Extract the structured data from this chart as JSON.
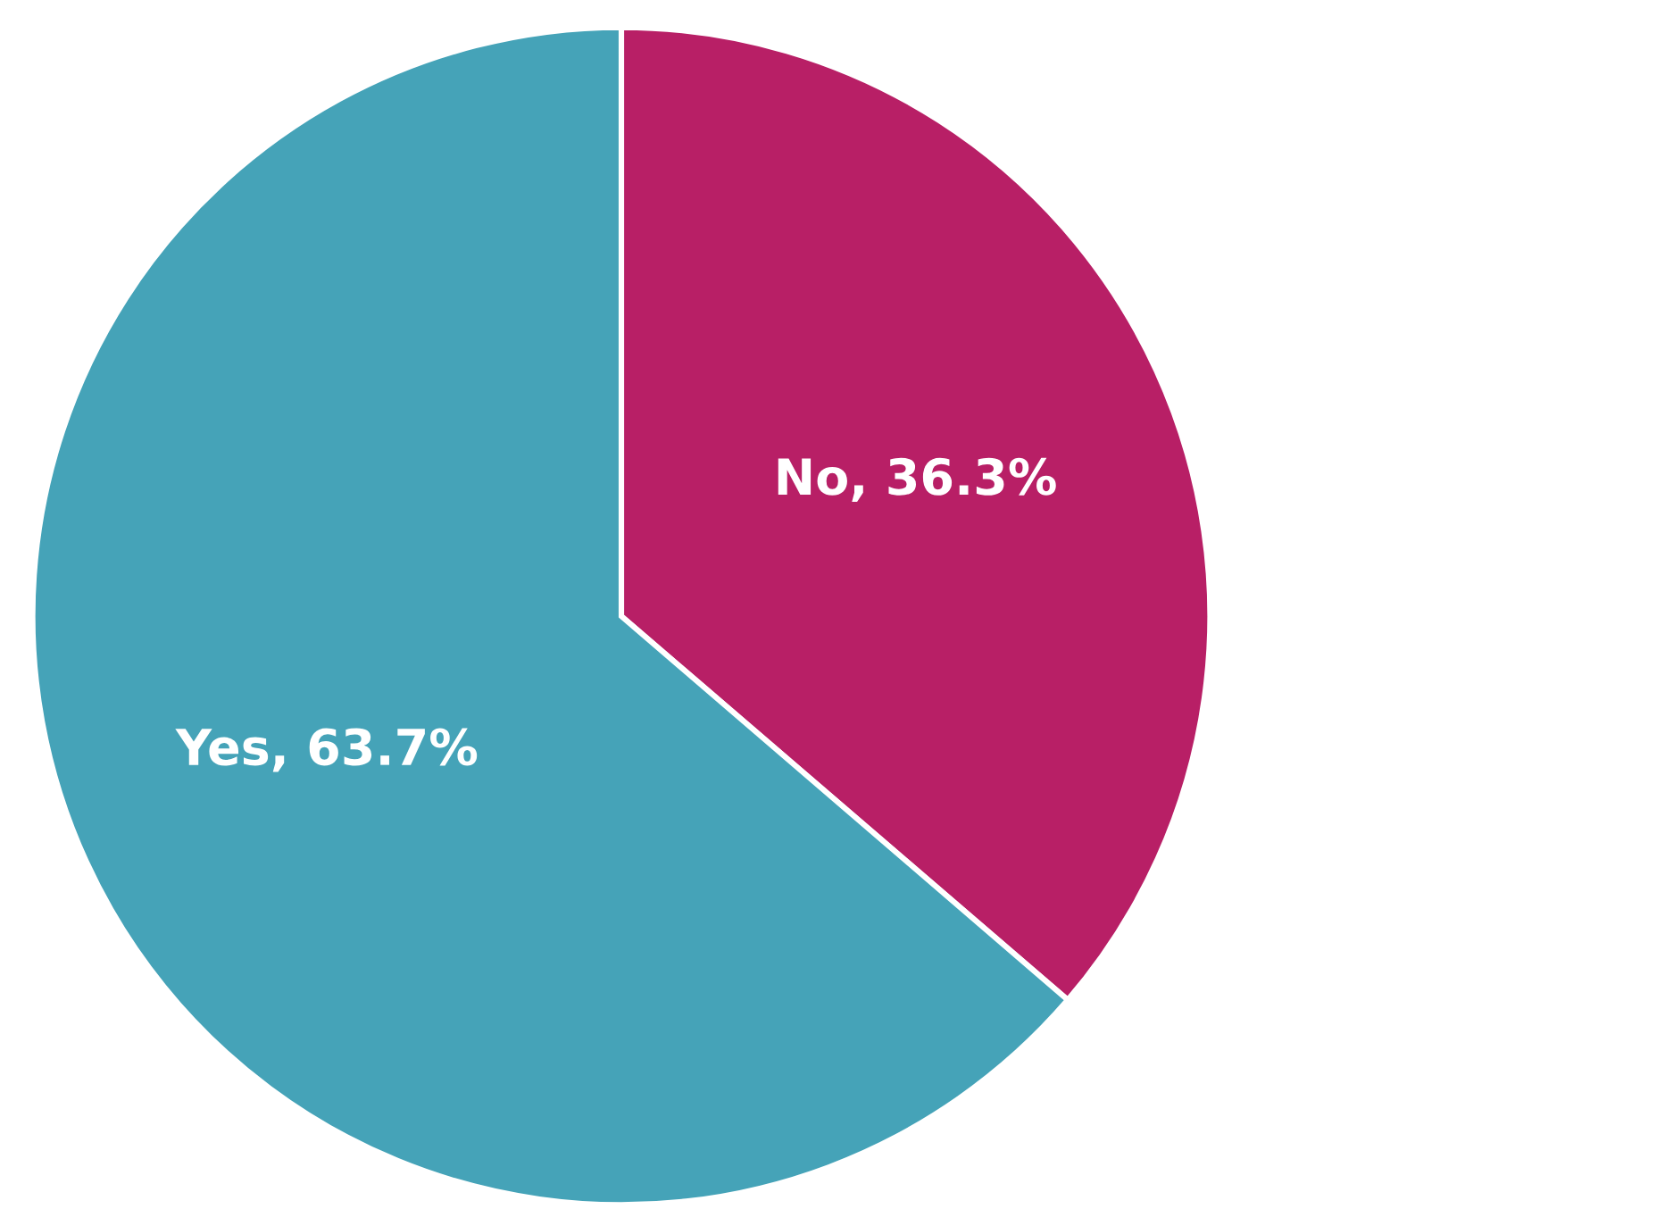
{
  "chart_data": {
    "type": "pie",
    "categories": [
      "No",
      "Yes"
    ],
    "values": [
      36.3,
      63.7
    ],
    "colors": [
      "#b81f66",
      "#45a3b8"
    ],
    "value_labels": [
      "36.3%",
      "63.7%"
    ]
  }
}
